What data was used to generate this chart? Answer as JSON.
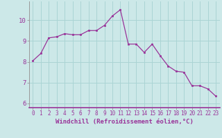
{
  "x": [
    0,
    1,
    2,
    3,
    4,
    5,
    6,
    7,
    8,
    9,
    10,
    11,
    12,
    13,
    14,
    15,
    16,
    17,
    18,
    19,
    20,
    21,
    22,
    23
  ],
  "y": [
    8.05,
    8.4,
    9.15,
    9.2,
    9.35,
    9.3,
    9.3,
    9.5,
    9.5,
    9.75,
    10.2,
    10.5,
    8.85,
    8.85,
    8.45,
    8.85,
    8.3,
    7.8,
    7.55,
    7.5,
    6.85,
    6.85,
    6.7,
    6.35
  ],
  "line_color": "#993399",
  "marker_color": "#993399",
  "bg_color": "#cce8e8",
  "grid_color": "#aad4d4",
  "xlabel": "Windchill (Refroidissement éolien,°C)",
  "xlabel_color": "#993399",
  "xlabel_fontsize": 6.5,
  "xtick_fontsize": 5.5,
  "ytick_fontsize": 6.5,
  "xlim": [
    -0.5,
    23.5
  ],
  "ylim": [
    5.8,
    10.9
  ],
  "yticks": [
    6,
    7,
    8,
    9,
    10
  ],
  "xticks": [
    0,
    1,
    2,
    3,
    4,
    5,
    6,
    7,
    8,
    9,
    10,
    11,
    12,
    13,
    14,
    15,
    16,
    17,
    18,
    19,
    20,
    21,
    22,
    23
  ]
}
